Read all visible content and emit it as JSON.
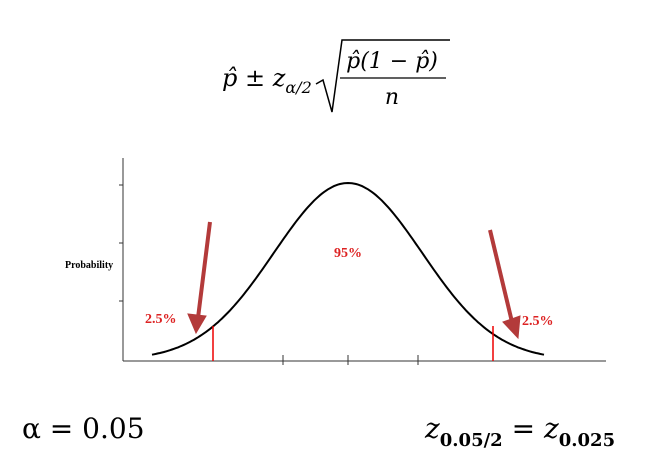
{
  "formula": {
    "lead": "p̂ ± z",
    "lead_sub": "α/2",
    "numerator": "p̂(1 − p̂)",
    "denominator": "n"
  },
  "chart": {
    "y_label": "Probability",
    "center_label": "95%",
    "left_tail_label": "2.5%",
    "right_tail_label": "2.5%"
  },
  "footer": {
    "alpha": "α = 0.05",
    "z_left": "z",
    "z_left_sub": "0.05/2",
    "z_eq": " = z",
    "z_right_sub": "0.025"
  }
}
